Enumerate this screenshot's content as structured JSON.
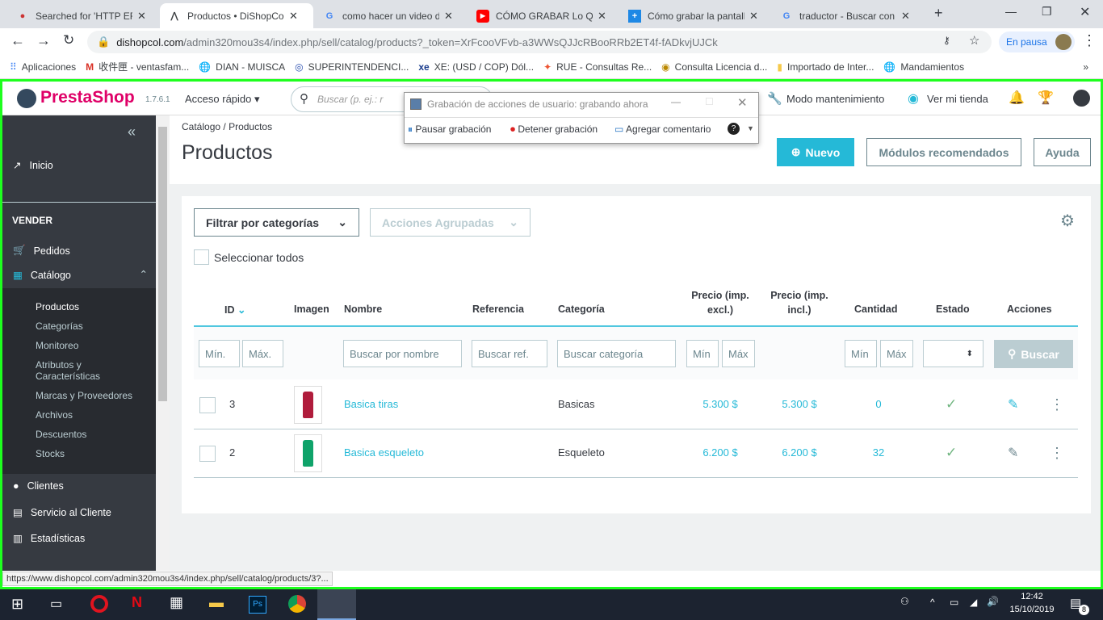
{
  "browser": {
    "tabs": [
      {
        "title": "Searched for 'HTTP ERI",
        "icon": "avatar-icon"
      },
      {
        "title": "Productos • DiShopCol",
        "icon": "prestashop-icon",
        "active": true
      },
      {
        "title": "como hacer un video d",
        "icon": "google-icon"
      },
      {
        "title": "CÓMO GRABAR Lo Que",
        "icon": "youtube-icon"
      },
      {
        "title": "Cómo grabar la pantall",
        "icon": "site-icon"
      },
      {
        "title": "traductor - Buscar con",
        "icon": "google-icon"
      }
    ],
    "url_domain": "dishopcol.com",
    "url_path": "/admin320mou3s4/index.php/sell/catalog/products?_token=XrFcooVFvb-a3WWsQJJcRBooRRb2ET4f-fADkvjUJCk",
    "profile_label": "En pausa",
    "bookmarks": [
      "Aplicaciones",
      "收件匣 - ventasfam...",
      "DIAN - MUISCA",
      "SUPERINTENDENCI...",
      "XE: (USD / COP) Dól...",
      "RUE - Consultas Re...",
      "Consulta Licencia d...",
      "Importado de Inter...",
      "Mandamientos"
    ],
    "status_url": "https://www.dishopcol.com/admin320mou3s4/index.php/sell/catalog/products/3?..."
  },
  "header": {
    "logo": "PrestaShop",
    "version": "1.7.6.1",
    "quick_access": "Acceso rápido",
    "search_placeholder": "Buscar (p. ej.: r",
    "maintenance": "Modo mantenimiento",
    "view_store": "Ver mi tienda"
  },
  "recorder": {
    "title": "Grabación de acciones de usuario: grabando ahora",
    "pause": "Pausar grabación",
    "stop": "Detener grabación",
    "comment": "Agregar comentario"
  },
  "sidebar": {
    "collapse": "«",
    "home": "Inicio",
    "section": "VENDER",
    "orders": "Pedidos",
    "catalog": "Catálogo",
    "catalog_items": [
      "Productos",
      "Categorías",
      "Monitoreo",
      "Atributos y\nCaracterísticas",
      "Marcas y Proveedores",
      "Archivos",
      "Descuentos",
      "Stocks"
    ],
    "customers": "Clientes",
    "service": "Servicio al Cliente",
    "stats": "Estadísticas"
  },
  "page": {
    "breadcrumb": [
      "Catálogo",
      "Productos"
    ],
    "title": "Productos",
    "new": "Nuevo",
    "modules": "Módulos recomendados",
    "help": "Ayuda"
  },
  "toolbar": {
    "filter_categories": "Filtrar por categorías",
    "bulk_actions": "Acciones Agrupadas",
    "select_all": "Seleccionar todos"
  },
  "table": {
    "headers": [
      "ID",
      "Imagen",
      "Nombre",
      "Referencia",
      "Categoría",
      "Precio (imp. excl.)",
      "Precio (imp. incl.)",
      "Cantidad",
      "Estado",
      "Acciones"
    ],
    "filters": {
      "id_min": "Mín.",
      "id_max": "Máx.",
      "name": "Buscar por nombre",
      "ref": "Buscar ref.",
      "category": "Buscar categoría",
      "price_min": "Mín",
      "price_max": "Máx",
      "qty_min": "Mín",
      "qty_max": "Máx",
      "search": "Buscar"
    },
    "rows": [
      {
        "id": "3",
        "name": "Basica tiras",
        "category": "Basicas",
        "price_excl": "5.300 $",
        "price_incl": "5.300 $",
        "qty": "0",
        "active": true,
        "image_color": "#b01c3c"
      },
      {
        "id": "2",
        "name": "Basica esqueleto",
        "category": "Esqueleto",
        "price_excl": "6.200 $",
        "price_incl": "6.200 $",
        "qty": "32",
        "active": true,
        "image_color": "#0fa36a"
      }
    ]
  },
  "taskbar": {
    "time": "12:42",
    "date": "15/10/2019",
    "notifications": "8"
  },
  "colors": {
    "accent": "#25b9d7",
    "sidebar": "#363a41",
    "frame": "#1eff1e",
    "success": "#70b580"
  }
}
